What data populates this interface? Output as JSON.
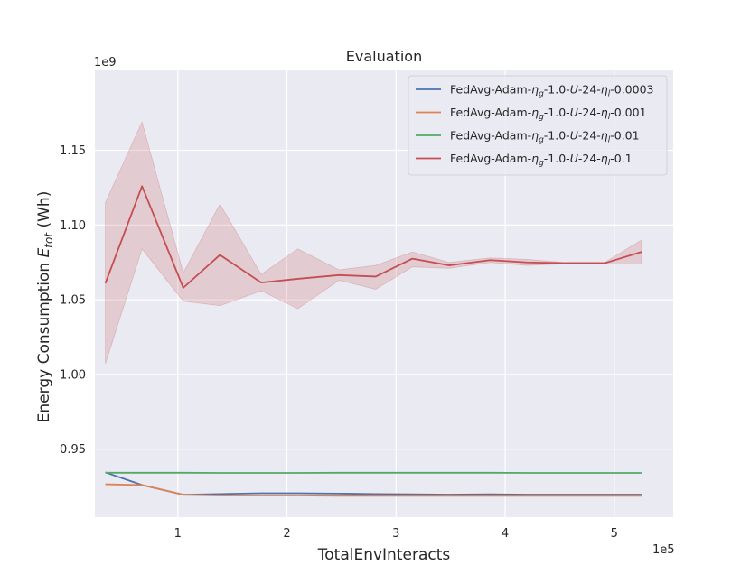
{
  "chart_data": {
    "type": "line",
    "title": "Evaluation",
    "xlabel": "TotalEnvInteracts",
    "ylabel": "Energy Consumption E_tot (Wh)",
    "ylabel_parts": {
      "prefix": "Energy Consumption ",
      "var": "E",
      "sub": "tot",
      "suffix": " (Wh)"
    },
    "x_scale_label": "1e5",
    "y_scale_label": "1e9",
    "xlim": [
      0.24,
      5.54
    ],
    "ylim": [
      0.9045,
      1.2035
    ],
    "xticks": [
      1,
      2,
      3,
      4,
      5
    ],
    "xtick_labels": [
      "1",
      "2",
      "3",
      "4",
      "5"
    ],
    "yticks": [
      0.95,
      1.0,
      1.05,
      1.1,
      1.15
    ],
    "ytick_labels": [
      "0.95",
      "1.00",
      "1.05",
      "1.10",
      "1.15"
    ],
    "grid": true,
    "legend_position": "top-right",
    "x": [
      0.336,
      0.672,
      1.05,
      1.386,
      1.764,
      2.1,
      2.478,
      2.814,
      3.15,
      3.486,
      3.864,
      4.2,
      4.536,
      4.914,
      5.25
    ],
    "series": [
      {
        "name": "FedAvg-Adam-ηg-1.0-U-24-ηl-0.0003",
        "legend": {
          "prefix": "FedAvg-Adam-",
          "g": "g",
          "mid": "-1.0-",
          "U": "U",
          "dash": "-24-",
          "l": "l",
          "suffix": "-0.0003"
        },
        "color": "#4c72b0",
        "values": [
          0.9345,
          0.926,
          0.9195,
          0.92,
          0.9205,
          0.9205,
          0.9203,
          0.92,
          0.9198,
          0.9196,
          0.9198,
          0.9196,
          0.9196,
          0.9196,
          0.9196
        ],
        "lower": null,
        "upper": null
      },
      {
        "name": "FedAvg-Adam-ηg-1.0-U-24-ηl-0.001",
        "legend": {
          "prefix": "FedAvg-Adam-",
          "g": "g",
          "mid": "-1.0-",
          "U": "U",
          "dash": "-24-",
          "l": "l",
          "suffix": "-0.001"
        },
        "color": "#dd8452",
        "values": [
          0.9265,
          0.926,
          0.9195,
          0.919,
          0.919,
          0.919,
          0.9188,
          0.9188,
          0.9188,
          0.9188,
          0.9188,
          0.9188,
          0.9188,
          0.9188,
          0.9188
        ],
        "lower": null,
        "upper": null
      },
      {
        "name": "FedAvg-Adam-ηg-1.0-U-24-ηl-0.01",
        "legend": {
          "prefix": "FedAvg-Adam-",
          "g": "g",
          "mid": "-1.0-",
          "U": "U",
          "dash": "-24-",
          "l": "l",
          "suffix": "-0.01"
        },
        "color": "#55a868",
        "values": [
          0.9342,
          0.9342,
          0.9342,
          0.9341,
          0.9341,
          0.9341,
          0.9342,
          0.9342,
          0.9342,
          0.9342,
          0.9342,
          0.9341,
          0.9341,
          0.9341,
          0.9341
        ],
        "lower": null,
        "upper": null
      },
      {
        "name": "FedAvg-Adam-ηg-1.0-U-24-ηl-0.1",
        "legend": {
          "prefix": "FedAvg-Adam-",
          "g": "g",
          "mid": "-1.0-",
          "U": "U",
          "dash": "-24-",
          "l": "l",
          "suffix": "-0.1"
        },
        "color": "#c44e52",
        "values": [
          1.061,
          1.126,
          1.058,
          1.08,
          1.0615,
          1.064,
          1.0665,
          1.0655,
          1.0775,
          1.073,
          1.0765,
          1.075,
          1.0745,
          1.0745,
          1.082
        ],
        "lower": [
          1.007,
          1.084,
          1.049,
          1.046,
          1.056,
          1.044,
          1.063,
          1.057,
          1.072,
          1.071,
          1.075,
          1.073,
          1.074,
          1.074,
          1.074
        ],
        "upper": [
          1.115,
          1.169,
          1.068,
          1.114,
          1.067,
          1.084,
          1.07,
          1.073,
          1.082,
          1.075,
          1.078,
          1.077,
          1.075,
          1.075,
          1.09
        ]
      }
    ]
  }
}
